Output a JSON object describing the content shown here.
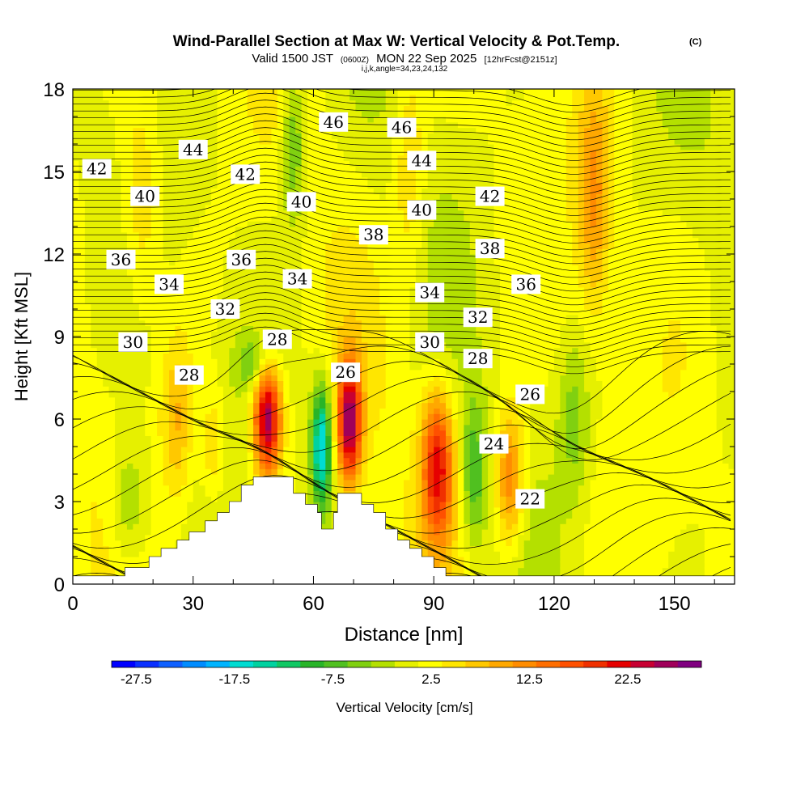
{
  "chart_data": {
    "type": "heatmap",
    "title": "Wind-Parallel Section at Max W: Vertical Velocity & Pot.Temp.",
    "title_mark": "(C)",
    "subtitle_parts": [
      "Valid 1500 JST",
      "(0600Z)",
      "MON 22 Sep 2025",
      "[12hrFcst@2151z]"
    ],
    "info_line": "i,j,k,angle=34,23,24,132",
    "xlabel": "Distance [nm]",
    "ylabel": "Height [Kft MSL]",
    "xlim": [
      0,
      165
    ],
    "ylim": [
      0,
      18
    ],
    "x_ticks": [
      "0",
      "30",
      "60",
      "90",
      "120",
      "150"
    ],
    "y_ticks": [
      "0",
      "3",
      "6",
      "9",
      "12",
      "15",
      "18"
    ],
    "colorbar": {
      "label": "Vertical Velocity [cm/s]",
      "range": [
        -30,
        30
      ],
      "step": 2.5,
      "tick_labels": [
        "-27.5",
        "-17.5",
        "-7.5",
        "2.5",
        "12.5",
        "22.5"
      ],
      "colors": [
        "#0000ff",
        "#0a30ff",
        "#0f60ff",
        "#008cff",
        "#00b4ff",
        "#00dcd2",
        "#00d2a0",
        "#10c864",
        "#28b428",
        "#50c020",
        "#80d010",
        "#b4e000",
        "#e6f000",
        "#ffff00",
        "#ffe600",
        "#ffc800",
        "#ffa800",
        "#ff8c00",
        "#ff6e00",
        "#ff5000",
        "#f03000",
        "#e60000",
        "#c80032",
        "#a0005a",
        "#800080"
      ]
    },
    "terrain": {
      "units": "x in nm, height in kft",
      "profile": [
        [
          0,
          0.3
        ],
        [
          13,
          0.3
        ],
        [
          13,
          0.6
        ],
        [
          19,
          0.6
        ],
        [
          19,
          1
        ],
        [
          22,
          1
        ],
        [
          22,
          1.3
        ],
        [
          26,
          1.3
        ],
        [
          26,
          1.6
        ],
        [
          29,
          1.6
        ],
        [
          29,
          1.9
        ],
        [
          33,
          1.9
        ],
        [
          33,
          2.3
        ],
        [
          36,
          2.3
        ],
        [
          36,
          2.6
        ],
        [
          39,
          2.6
        ],
        [
          39,
          3
        ],
        [
          42,
          3
        ],
        [
          42,
          3.6
        ],
        [
          45,
          3.6
        ],
        [
          45,
          3.9
        ],
        [
          55,
          3.9
        ],
        [
          55,
          3.3
        ],
        [
          58,
          3.3
        ],
        [
          58,
          2.9
        ],
        [
          61,
          2.9
        ],
        [
          61,
          2.6
        ],
        [
          62,
          2.6
        ],
        [
          62,
          2
        ],
        [
          65,
          2
        ],
        [
          65,
          2.6
        ],
        [
          66,
          2.6
        ],
        [
          66,
          3.3
        ],
        [
          72,
          3.3
        ],
        [
          72,
          2.9
        ],
        [
          75,
          2.9
        ],
        [
          75,
          2.6
        ],
        [
          78,
          2.6
        ],
        [
          78,
          2
        ],
        [
          81,
          2
        ],
        [
          81,
          1.6
        ],
        [
          84,
          1.6
        ],
        [
          84,
          1.3
        ],
        [
          87,
          1.3
        ],
        [
          87,
          1
        ],
        [
          90,
          1
        ],
        [
          90,
          0.6
        ],
        [
          93,
          0.6
        ],
        [
          93,
          0.3
        ],
        [
          165,
          0.3
        ]
      ]
    },
    "wmax": [
      {
        "x": 48.5,
        "z": 6.1,
        "w": 28,
        "sx": 3.5,
        "sz": 2.2
      },
      {
        "x": 69,
        "z": 5.9,
        "w": 26,
        "sx": 3,
        "sz": 2.2
      },
      {
        "x": 91,
        "z": 4.3,
        "w": 21,
        "sx": 4,
        "sz": 2.7
      },
      {
        "x": 109,
        "z": 3.8,
        "w": 14,
        "sx": 3.5,
        "sz": 2.5
      },
      {
        "x": 62,
        "z": 5,
        "w": -21,
        "sx": 2.5,
        "sz": 2.3
      },
      {
        "x": 46,
        "z": 8,
        "w": -8,
        "sx": 5,
        "sz": 1.1
      },
      {
        "x": 100,
        "z": 4,
        "w": -9,
        "sx": 3,
        "sz": 2.6
      },
      {
        "x": 14,
        "z": 2.8,
        "w": -7,
        "sx": 5,
        "sz": 2.5
      },
      {
        "x": 26,
        "z": 6,
        "w": 8,
        "sx": 4,
        "sz": 3
      },
      {
        "x": 35,
        "z": 5,
        "w": 6,
        "sx": 3,
        "sz": 2
      },
      {
        "x": 130,
        "z": 14,
        "w": 10,
        "sx": 4,
        "sz": 4
      },
      {
        "x": 84,
        "z": 15,
        "w": 6,
        "sx": 4,
        "sz": 4
      },
      {
        "x": 55,
        "z": 16,
        "w": -9,
        "sx": 3,
        "sz": 3
      },
      {
        "x": 125,
        "z": 6,
        "w": -6,
        "sx": 4,
        "sz": 3
      },
      {
        "x": 17,
        "z": 14,
        "w": 6,
        "sx": 5,
        "sz": 4
      }
    ],
    "theta_label_values": [
      "42",
      "44",
      "46",
      "46",
      "42",
      "44",
      "40",
      "40",
      "42",
      "40",
      "38",
      "36",
      "36",
      "38",
      "34",
      "34",
      "36",
      "32",
      "34",
      "32",
      "30",
      "30",
      "28",
      "28",
      "26",
      "28",
      "26",
      "24",
      "22"
    ],
    "theta_labels": [
      {
        "v": "42",
        "x": 6,
        "z": 15.1
      },
      {
        "v": "44",
        "x": 30,
        "z": 15.8
      },
      {
        "v": "46",
        "x": 65,
        "z": 16.8
      },
      {
        "v": "46",
        "x": 82,
        "z": 16.6
      },
      {
        "v": "42",
        "x": 43,
        "z": 14.9
      },
      {
        "v": "44",
        "x": 87,
        "z": 15.4
      },
      {
        "v": "40",
        "x": 18,
        "z": 14.1
      },
      {
        "v": "40",
        "x": 57,
        "z": 13.9
      },
      {
        "v": "42",
        "x": 104,
        "z": 14.1
      },
      {
        "v": "40",
        "x": 87,
        "z": 13.6
      },
      {
        "v": "38",
        "x": 75,
        "z": 12.7
      },
      {
        "v": "36",
        "x": 12,
        "z": 11.8
      },
      {
        "v": "36",
        "x": 42,
        "z": 11.8
      },
      {
        "v": "38",
        "x": 104,
        "z": 12.2
      },
      {
        "v": "34",
        "x": 24,
        "z": 10.9
      },
      {
        "v": "34",
        "x": 56,
        "z": 11.1
      },
      {
        "v": "36",
        "x": 113,
        "z": 10.9
      },
      {
        "v": "32",
        "x": 38,
        "z": 10
      },
      {
        "v": "34",
        "x": 89,
        "z": 10.6
      },
      {
        "v": "32",
        "x": 101,
        "z": 9.7
      },
      {
        "v": "30",
        "x": 15,
        "z": 8.8
      },
      {
        "v": "30",
        "x": 89,
        "z": 8.8
      },
      {
        "v": "28",
        "x": 51,
        "z": 8.9
      },
      {
        "v": "28",
        "x": 29,
        "z": 7.6
      },
      {
        "v": "26",
        "x": 68,
        "z": 7.7
      },
      {
        "v": "28",
        "x": 101,
        "z": 8.2
      },
      {
        "v": "26",
        "x": 114,
        "z": 6.9
      },
      {
        "v": "24",
        "x": 105,
        "z": 5.1
      },
      {
        "v": "22",
        "x": 114,
        "z": 3.1
      }
    ]
  }
}
